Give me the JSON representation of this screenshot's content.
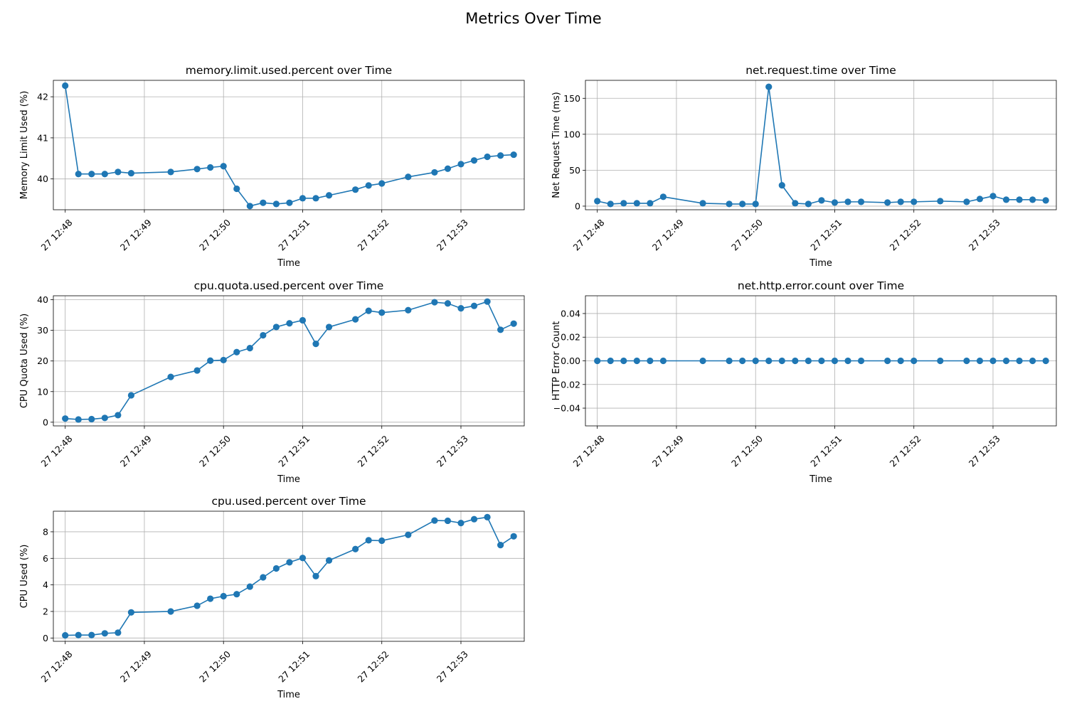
{
  "figure": {
    "title": "Metrics Over Time"
  },
  "chart_data": [
    {
      "type": "line",
      "title": "memory.limit.used.percent over Time",
      "xlabel": "Time",
      "ylabel": "Memory Limit Used (%)",
      "x_ticks": [
        "27 12:48",
        "27 12:49",
        "27 12:50",
        "27 12:51",
        "27 12:52",
        "27 12:53"
      ],
      "y_ticks": [
        40,
        41,
        42
      ],
      "xlim": [
        "12:47:51",
        "12:53:48"
      ],
      "ylim": [
        39.25,
        42.4
      ],
      "grid": true,
      "color": "#1f77b4",
      "x": [
        "12:48:00",
        "12:48:10",
        "12:48:20",
        "12:48:30",
        "12:48:40",
        "12:48:50",
        "12:49:20",
        "12:49:40",
        "12:49:50",
        "12:50:00",
        "12:50:10",
        "12:50:20",
        "12:50:30",
        "12:50:40",
        "12:50:50",
        "12:51:00",
        "12:51:10",
        "12:51:20",
        "12:51:40",
        "12:51:50",
        "12:52:00",
        "12:52:20",
        "12:52:40",
        "12:52:50",
        "12:53:00",
        "12:53:10",
        "12:53:20",
        "12:53:30",
        "12:53:40"
      ],
      "values": [
        42.27,
        40.12,
        40.12,
        40.12,
        40.17,
        40.14,
        40.17,
        40.24,
        40.28,
        40.31,
        39.76,
        39.34,
        39.42,
        39.39,
        39.42,
        39.53,
        39.53,
        39.6,
        39.74,
        39.84,
        39.89,
        40.05,
        40.16,
        40.25,
        40.36,
        40.45,
        40.54,
        40.57,
        40.59
      ]
    },
    {
      "type": "line",
      "title": "net.request.time over Time",
      "xlabel": "Time",
      "ylabel": "Net Request Time (ms)",
      "x_ticks": [
        "27 12:48",
        "27 12:49",
        "27 12:50",
        "27 12:51",
        "27 12:52",
        "27 12:53"
      ],
      "y_ticks": [
        0,
        50,
        100,
        150
      ],
      "xlim": [
        "12:47:51",
        "12:53:48"
      ],
      "ylim": [
        -5,
        175
      ],
      "grid": true,
      "color": "#1f77b4",
      "x": [
        "12:48:00",
        "12:48:10",
        "12:48:20",
        "12:48:30",
        "12:48:40",
        "12:48:50",
        "12:49:20",
        "12:49:40",
        "12:49:50",
        "12:50:00",
        "12:50:10",
        "12:50:20",
        "12:50:30",
        "12:50:40",
        "12:50:50",
        "12:51:00",
        "12:51:10",
        "12:51:20",
        "12:51:40",
        "12:51:50",
        "12:52:00",
        "12:52:20",
        "12:52:40",
        "12:52:50",
        "12:53:00",
        "12:53:10",
        "12:53:20",
        "12:53:30",
        "12:53:40"
      ],
      "values": [
        7,
        3,
        4,
        4,
        4,
        13,
        4,
        3,
        3,
        3,
        166,
        29,
        4,
        3,
        8,
        5,
        6,
        6,
        5,
        6,
        6,
        7,
        6,
        10,
        14,
        9,
        9,
        9,
        8
      ]
    },
    {
      "type": "line",
      "title": "cpu.quota.used.percent over Time",
      "xlabel": "Time",
      "ylabel": "CPU Quota Used (%)",
      "x_ticks": [
        "27 12:48",
        "27 12:49",
        "27 12:50",
        "27 12:51",
        "27 12:52",
        "27 12:53"
      ],
      "y_ticks": [
        0,
        10,
        20,
        30,
        40
      ],
      "xlim": [
        "12:47:51",
        "12:53:48"
      ],
      "ylim": [
        -1.2,
        41.3
      ],
      "grid": true,
      "color": "#1f77b4",
      "x": [
        "12:48:00",
        "12:48:10",
        "12:48:20",
        "12:48:30",
        "12:48:40",
        "12:48:50",
        "12:49:20",
        "12:49:40",
        "12:49:50",
        "12:50:00",
        "12:50:10",
        "12:50:20",
        "12:50:30",
        "12:50:40",
        "12:50:50",
        "12:51:00",
        "12:51:10",
        "12:51:20",
        "12:51:40",
        "12:51:50",
        "12:52:00",
        "12:52:20",
        "12:52:40",
        "12:52:50",
        "12:53:00",
        "12:53:10",
        "12:53:20",
        "12:53:30",
        "12:53:40"
      ],
      "values": [
        1.2,
        0.9,
        1.0,
        1.4,
        2.3,
        8.8,
        14.8,
        16.9,
        20.1,
        20.3,
        22.9,
        24.2,
        28.4,
        31.1,
        32.3,
        33.3,
        25.6,
        31.1,
        33.6,
        36.4,
        35.8,
        36.6,
        39.2,
        38.8,
        37.2,
        38.0,
        39.4,
        30.2,
        32.2
      ]
    },
    {
      "type": "line",
      "title": "net.http.error.count over Time",
      "xlabel": "Time",
      "ylabel": "HTTP Error Count",
      "x_ticks": [
        "27 12:48",
        "27 12:49",
        "27 12:50",
        "27 12:51",
        "27 12:52",
        "27 12:53"
      ],
      "y_ticks": [
        -0.04,
        -0.02,
        0.0,
        0.02,
        0.04
      ],
      "y_tick_labels": [
        "−0.04",
        "−0.02",
        "0.00",
        "0.02",
        "0.04"
      ],
      "xlim": [
        "12:47:51",
        "12:53:48"
      ],
      "ylim": [
        -0.055,
        0.055
      ],
      "grid": true,
      "color": "#1f77b4",
      "x": [
        "12:48:00",
        "12:48:10",
        "12:48:20",
        "12:48:30",
        "12:48:40",
        "12:48:50",
        "12:49:20",
        "12:49:40",
        "12:49:50",
        "12:50:00",
        "12:50:10",
        "12:50:20",
        "12:50:30",
        "12:50:40",
        "12:50:50",
        "12:51:00",
        "12:51:10",
        "12:51:20",
        "12:51:40",
        "12:51:50",
        "12:52:00",
        "12:52:20",
        "12:52:40",
        "12:52:50",
        "12:53:00",
        "12:53:10",
        "12:53:20",
        "12:53:30",
        "12:53:40"
      ],
      "values": [
        0,
        0,
        0,
        0,
        0,
        0,
        0,
        0,
        0,
        0,
        0,
        0,
        0,
        0,
        0,
        0,
        0,
        0,
        0,
        0,
        0,
        0,
        0,
        0,
        0,
        0,
        0,
        0,
        0
      ]
    },
    {
      "type": "line",
      "title": "cpu.used.percent over Time",
      "xlabel": "Time",
      "ylabel": "CPU Used (%)",
      "x_ticks": [
        "27 12:48",
        "27 12:49",
        "27 12:50",
        "27 12:51",
        "27 12:52",
        "27 12:53"
      ],
      "y_ticks": [
        0,
        2,
        4,
        6,
        8
      ],
      "xlim": [
        "12:47:51",
        "12:53:48"
      ],
      "ylim": [
        -0.25,
        9.55
      ],
      "grid": true,
      "color": "#1f77b4",
      "x": [
        "12:48:00",
        "12:48:10",
        "12:48:20",
        "12:48:30",
        "12:48:40",
        "12:48:50",
        "12:49:20",
        "12:49:40",
        "12:49:50",
        "12:50:00",
        "12:50:10",
        "12:50:20",
        "12:50:30",
        "12:50:40",
        "12:50:50",
        "12:51:00",
        "12:51:10",
        "12:51:20",
        "12:51:40",
        "12:51:50",
        "12:52:00",
        "12:52:20",
        "12:52:40",
        "12:52:50",
        "12:53:00",
        "12:53:10",
        "12:53:20",
        "12:53:30",
        "12:53:40"
      ],
      "values": [
        0.2,
        0.22,
        0.22,
        0.35,
        0.4,
        1.93,
        2.0,
        2.43,
        2.96,
        3.15,
        3.3,
        3.87,
        4.57,
        5.24,
        5.7,
        6.03,
        4.66,
        5.84,
        6.7,
        7.36,
        7.33,
        7.77,
        8.85,
        8.83,
        8.66,
        8.95,
        9.1,
        7.0,
        7.66
      ]
    }
  ]
}
